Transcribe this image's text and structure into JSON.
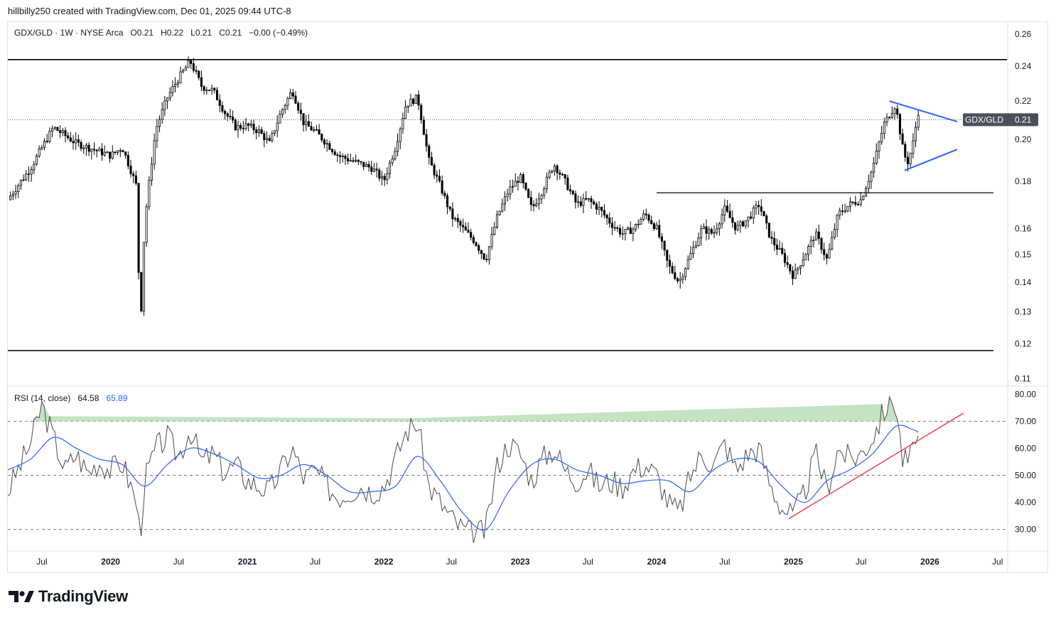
{
  "header": {
    "text": "hillbilly250 created with TradingView.com, Dec 01, 2025 09:44 UTC-8"
  },
  "legend": {
    "symbol": "GDX/GLD · 1W · NYSE Arca",
    "o_label": "O",
    "o": "0.21",
    "h_label": "H",
    "h": "0.22",
    "l_label": "L",
    "l": "0.21",
    "c_label": "C",
    "c": "0.21",
    "change": "−0.00 (−0.49%)"
  },
  "price_tag": {
    "label": "GDX/GLD",
    "value": "0.21",
    "color": "#4b4f5c"
  },
  "rsi_legend": {
    "label": "RSI (14, close)",
    "rsi": "64.58",
    "ma": "65.89"
  },
  "footer": {
    "brand": "TradingView"
  },
  "colors": {
    "up": "#ffffff",
    "down": "#000000",
    "rsi_line": "#4b4b4b",
    "rsi_ma": "#2962ff",
    "trend_blue": "#2962ff",
    "trend_red": "#f23645",
    "overbought_fill": "#b7dbb6"
  },
  "chart_data": [
    {
      "type": "candlestick",
      "symbol": "GDX/GLD",
      "timeframe": "1W",
      "scale": "log",
      "ylim": [
        0.108,
        0.268
      ],
      "y_ticks": [
        "0.26",
        "0.24",
        "0.22",
        "0.20",
        "0.18",
        "0.16",
        "0.15",
        "0.14",
        "0.13",
        "0.12",
        "0.11"
      ],
      "y_tick_values": [
        0.26,
        0.24,
        0.22,
        0.2,
        0.18,
        0.16,
        0.15,
        0.14,
        0.13,
        0.12,
        0.11
      ],
      "x_ticks": [
        "Jul",
        "2020",
        "Jul",
        "2021",
        "Jul",
        "2022",
        "Jul",
        "2023",
        "Jul",
        "2024",
        "Jul",
        "2025",
        "Jul",
        "2026",
        "Jul"
      ],
      "x_tick_dates": [
        "2019-07",
        "2020-01",
        "2020-07",
        "2021-01",
        "2021-07",
        "2022-01",
        "2022-07",
        "2023-01",
        "2023-07",
        "2024-01",
        "2024-07",
        "2025-01",
        "2025-07",
        "2026-01",
        "2026-07"
      ],
      "close_path": [
        [
          "2019-04",
          0.172
        ],
        [
          "2019-06",
          0.186
        ],
        [
          "2019-08",
          0.206
        ],
        [
          "2019-10",
          0.198
        ],
        [
          "2019-12",
          0.194
        ],
        [
          "2020-01",
          0.192
        ],
        [
          "2020-02",
          0.196
        ],
        [
          "2020-03-10",
          0.178
        ],
        [
          "2020-03-20",
          0.121
        ],
        [
          "2020-04",
          0.162
        ],
        [
          "2020-05",
          0.205
        ],
        [
          "2020-06",
          0.222
        ],
        [
          "2020-07",
          0.233
        ],
        [
          "2020-08",
          0.243
        ],
        [
          "2020-09",
          0.228
        ],
        [
          "2020-10",
          0.226
        ],
        [
          "2020-11",
          0.214
        ],
        [
          "2020-12",
          0.206
        ],
        [
          "2021-01",
          0.207
        ],
        [
          "2021-02",
          0.204
        ],
        [
          "2021-03",
          0.198
        ],
        [
          "2021-04",
          0.214
        ],
        [
          "2021-05",
          0.226
        ],
        [
          "2021-06",
          0.208
        ],
        [
          "2021-07",
          0.204
        ],
        [
          "2021-08",
          0.198
        ],
        [
          "2021-09",
          0.192
        ],
        [
          "2021-10",
          0.19
        ],
        [
          "2021-11",
          0.188
        ],
        [
          "2021-12",
          0.186
        ],
        [
          "2022-01",
          0.18
        ],
        [
          "2022-02",
          0.196
        ],
        [
          "2022-03",
          0.218
        ],
        [
          "2022-04",
          0.222
        ],
        [
          "2022-05",
          0.19
        ],
        [
          "2022-06",
          0.178
        ],
        [
          "2022-07",
          0.165
        ],
        [
          "2022-08",
          0.16
        ],
        [
          "2022-09",
          0.155
        ],
        [
          "2022-10",
          0.148
        ],
        [
          "2022-11",
          0.165
        ],
        [
          "2022-12",
          0.176
        ],
        [
          "2023-01",
          0.182
        ],
        [
          "2023-02",
          0.168
        ],
        [
          "2023-03",
          0.176
        ],
        [
          "2023-04",
          0.188
        ],
        [
          "2023-05",
          0.18
        ],
        [
          "2023-06",
          0.17
        ],
        [
          "2023-07",
          0.172
        ],
        [
          "2023-08",
          0.168
        ],
        [
          "2023-09",
          0.162
        ],
        [
          "2023-10",
          0.158
        ],
        [
          "2023-11",
          0.16
        ],
        [
          "2023-12",
          0.166
        ],
        [
          "2024-01",
          0.16
        ],
        [
          "2024-02",
          0.146
        ],
        [
          "2024-03",
          0.14
        ],
        [
          "2024-04",
          0.15
        ],
        [
          "2024-05",
          0.16
        ],
        [
          "2024-06",
          0.158
        ],
        [
          "2024-07",
          0.168
        ],
        [
          "2024-08",
          0.16
        ],
        [
          "2024-09",
          0.164
        ],
        [
          "2024-10",
          0.17
        ],
        [
          "2024-11",
          0.156
        ],
        [
          "2024-12",
          0.15
        ],
        [
          "2025-01",
          0.142
        ],
        [
          "2025-02",
          0.15
        ],
        [
          "2025-03",
          0.158
        ],
        [
          "2025-04",
          0.148
        ],
        [
          "2025-05",
          0.166
        ],
        [
          "2025-06",
          0.17
        ],
        [
          "2025-07",
          0.172
        ],
        [
          "2025-08",
          0.186
        ],
        [
          "2025-09",
          0.208
        ],
        [
          "2025-10-01",
          0.218
        ],
        [
          "2025-10-20",
          0.196
        ],
        [
          "2025-11-01",
          0.188
        ],
        [
          "2025-11-15",
          0.196
        ],
        [
          "2025-12-01",
          0.214
        ]
      ],
      "reference_lines": [
        {
          "price": 0.244,
          "from": "2019-04",
          "to": "2026-08"
        },
        {
          "price": 0.118,
          "from": "2019-04",
          "to": "2026-08"
        },
        {
          "price": 0.175,
          "from": "2024-01",
          "to": "2026-08"
        }
      ],
      "trendlines": [
        {
          "from": [
            "2025-09-15",
            0.22
          ],
          "to": [
            "2026-03-15",
            0.209
          ]
        },
        {
          "from": [
            "2025-10-25",
            0.185
          ],
          "to": [
            "2026-03-15",
            0.195
          ]
        }
      ],
      "last_price": 0.21
    },
    {
      "type": "line",
      "title": "RSI (14, close)",
      "ylim": [
        22,
        83
      ],
      "y_ticks": [
        "80.00",
        "70.00",
        "60.00",
        "50.00",
        "40.00",
        "30.00"
      ],
      "y_tick_values": [
        80,
        70,
        60,
        50,
        40,
        30
      ],
      "levels": [
        70,
        50,
        30
      ],
      "rsi_path": [
        [
          "2019-04",
          44
        ],
        [
          "2019-06",
          62
        ],
        [
          "2019-07",
          76
        ],
        [
          "2019-08",
          64
        ],
        [
          "2019-09",
          52
        ],
        [
          "2019-10",
          58
        ],
        [
          "2019-11",
          51
        ],
        [
          "2019-12",
          55
        ],
        [
          "2020-01",
          52
        ],
        [
          "2020-02",
          55
        ],
        [
          "2020-03-10",
          40
        ],
        [
          "2020-03-20",
          27
        ],
        [
          "2020-04",
          48
        ],
        [
          "2020-05",
          60
        ],
        [
          "2020-06",
          64
        ],
        [
          "2020-07",
          57
        ],
        [
          "2020-08",
          67
        ],
        [
          "2020-09",
          55
        ],
        [
          "2020-10",
          58
        ],
        [
          "2020-11",
          51
        ],
        [
          "2020-12",
          54
        ],
        [
          "2021-01",
          48
        ],
        [
          "2021-02",
          46
        ],
        [
          "2021-03",
          44
        ],
        [
          "2021-04",
          52
        ],
        [
          "2021-05",
          60
        ],
        [
          "2021-06",
          49
        ],
        [
          "2021-07",
          52
        ],
        [
          "2021-08",
          46
        ],
        [
          "2021-09",
          42
        ],
        [
          "2021-10",
          44
        ],
        [
          "2021-11",
          46
        ],
        [
          "2021-12",
          44
        ],
        [
          "2022-01",
          46
        ],
        [
          "2022-02",
          56
        ],
        [
          "2022-03",
          66
        ],
        [
          "2022-04",
          70
        ],
        [
          "2022-05",
          46
        ],
        [
          "2022-06",
          40
        ],
        [
          "2022-07",
          34
        ],
        [
          "2022-08",
          30
        ],
        [
          "2022-09",
          28
        ],
        [
          "2022-10",
          30
        ],
        [
          "2022-11",
          54
        ],
        [
          "2022-12",
          62
        ],
        [
          "2023-01",
          58
        ],
        [
          "2023-02",
          48
        ],
        [
          "2023-03",
          56
        ],
        [
          "2023-04",
          60
        ],
        [
          "2023-05",
          52
        ],
        [
          "2023-06",
          48
        ],
        [
          "2023-07",
          52
        ],
        [
          "2023-08",
          46
        ],
        [
          "2023-09",
          48
        ],
        [
          "2023-10",
          46
        ],
        [
          "2023-11",
          52
        ],
        [
          "2023-12",
          54
        ],
        [
          "2024-01",
          50
        ],
        [
          "2024-02",
          40
        ],
        [
          "2024-03",
          36
        ],
        [
          "2024-04",
          50
        ],
        [
          "2024-05",
          58
        ],
        [
          "2024-06",
          54
        ],
        [
          "2024-07",
          62
        ],
        [
          "2024-08",
          52
        ],
        [
          "2024-09",
          58
        ],
        [
          "2024-10",
          60
        ],
        [
          "2024-11",
          46
        ],
        [
          "2024-12",
          38
        ],
        [
          "2025-01",
          35
        ],
        [
          "2025-02",
          44
        ],
        [
          "2025-03",
          58
        ],
        [
          "2025-04",
          45
        ],
        [
          "2025-05",
          60
        ],
        [
          "2025-06",
          56
        ],
        [
          "2025-07",
          58
        ],
        [
          "2025-08",
          64
        ],
        [
          "2025-09",
          74
        ],
        [
          "2025-09-20",
          78
        ],
        [
          "2025-10-01",
          77
        ],
        [
          "2025-10-20",
          56
        ],
        [
          "2025-11-01",
          55
        ],
        [
          "2025-11-15",
          58
        ],
        [
          "2025-12-01",
          64.58
        ]
      ],
      "ma_path": [
        [
          "2019-04",
          52
        ],
        [
          "2019-06",
          56
        ],
        [
          "2019-08",
          64
        ],
        [
          "2019-10",
          60
        ],
        [
          "2019-12",
          56
        ],
        [
          "2020-02",
          54
        ],
        [
          "2020-04",
          46
        ],
        [
          "2020-06",
          54
        ],
        [
          "2020-08",
          60
        ],
        [
          "2020-10",
          58
        ],
        [
          "2020-12",
          54
        ],
        [
          "2021-02",
          49
        ],
        [
          "2021-04",
          50
        ],
        [
          "2021-06",
          54
        ],
        [
          "2021-08",
          50
        ],
        [
          "2021-10",
          44
        ],
        [
          "2021-12",
          44
        ],
        [
          "2022-02",
          46
        ],
        [
          "2022-04",
          57
        ],
        [
          "2022-06",
          48
        ],
        [
          "2022-08",
          36
        ],
        [
          "2022-10",
          30
        ],
        [
          "2022-12",
          44
        ],
        [
          "2023-02",
          54
        ],
        [
          "2023-04",
          56
        ],
        [
          "2023-06",
          52
        ],
        [
          "2023-08",
          50
        ],
        [
          "2023-10",
          47
        ],
        [
          "2023-12",
          48
        ],
        [
          "2024-02",
          48
        ],
        [
          "2024-04",
          44
        ],
        [
          "2024-06",
          52
        ],
        [
          "2024-08",
          56
        ],
        [
          "2024-10",
          55
        ],
        [
          "2024-12",
          46
        ],
        [
          "2025-02",
          40
        ],
        [
          "2025-04",
          48
        ],
        [
          "2025-06",
          52
        ],
        [
          "2025-08",
          58
        ],
        [
          "2025-10",
          68
        ],
        [
          "2025-11-15",
          67
        ],
        [
          "2025-12-01",
          65.89
        ]
      ],
      "trendline": {
        "from": [
          "2024-12-20",
          34
        ],
        "to": [
          "2026-04-01",
          73
        ]
      },
      "last_rsi": 64.58,
      "last_ma": 65.89
    }
  ]
}
